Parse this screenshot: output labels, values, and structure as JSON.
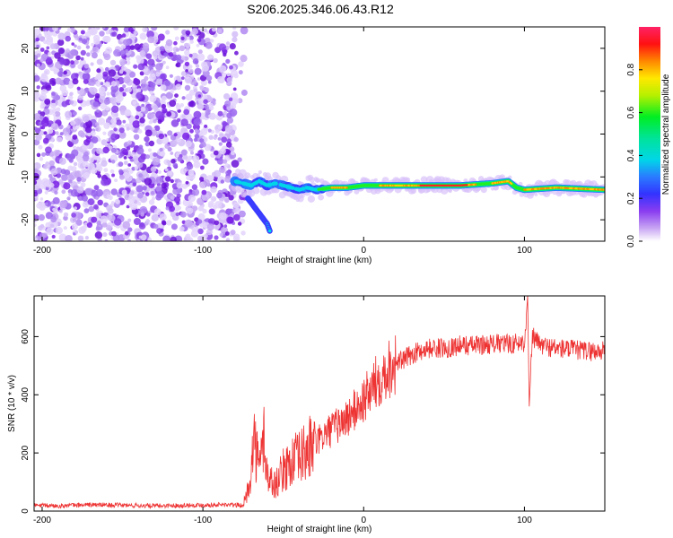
{
  "title": "S206.2025.346.06.43.R12",
  "chart_data": [
    {
      "type": "heatmap",
      "title": "S206.2025.346.06.43.R12",
      "xlabel": "Height of straight line (km)",
      "ylabel": "Frequency (Hz)",
      "xlim": [
        -205,
        150
      ],
      "ylim": [
        -25,
        25
      ],
      "xticks": [
        -200,
        -100,
        0,
        100
      ],
      "yticks": [
        -20,
        -10,
        0,
        10,
        20
      ],
      "noise_region_x": [
        -205,
        -80
      ],
      "signal_track": {
        "x": [
          -80,
          -75,
          -70,
          -65,
          -60,
          -55,
          -50,
          -45,
          -40,
          -35,
          -30,
          -20,
          -10,
          0,
          20,
          40,
          60,
          80,
          90,
          95,
          100,
          120,
          150
        ],
        "y": [
          -11,
          -11.5,
          -12,
          -11,
          -12,
          -11.5,
          -12,
          -12.5,
          -13,
          -12.5,
          -13,
          -12.5,
          -12.5,
          -12,
          -12,
          -12,
          -12,
          -11.5,
          -11,
          -12.5,
          -13,
          -12.5,
          -13
        ]
      },
      "branch_track": {
        "x": [
          -72,
          -68,
          -64,
          -60,
          -58
        ],
        "y": [
          -15,
          -17,
          -19,
          -21,
          -23
        ]
      },
      "colorbar": {
        "label": "Normalized spectral amplitude",
        "ticks": [
          "0.0",
          "0.2",
          "0.4",
          "0.6",
          "0.8"
        ],
        "range": [
          0,
          1
        ]
      }
    },
    {
      "type": "line",
      "xlabel": "Height of straight line (km)",
      "ylabel": "SNR (10 * v/v)",
      "xlim": [
        -205,
        150
      ],
      "ylim": [
        0,
        740
      ],
      "xticks": [
        -200,
        -100,
        0,
        100
      ],
      "yticks": [
        0,
        200,
        400,
        600
      ],
      "series": [
        {
          "name": "SNR",
          "color": "#ee3333",
          "x": [
            -205,
            -190,
            -170,
            -150,
            -130,
            -110,
            -90,
            -75,
            -72,
            -70,
            -68,
            -65,
            -62,
            -60,
            -55,
            -50,
            -45,
            -40,
            -35,
            -30,
            -25,
            -20,
            -15,
            -10,
            -5,
            0,
            5,
            10,
            15,
            20,
            25,
            30,
            40,
            50,
            60,
            70,
            80,
            90,
            100,
            102,
            103,
            105,
            110,
            120,
            130,
            140,
            150
          ],
          "y": [
            20,
            18,
            22,
            20,
            18,
            20,
            22,
            20,
            70,
            150,
            250,
            140,
            260,
            120,
            90,
            140,
            170,
            180,
            210,
            230,
            260,
            280,
            300,
            320,
            350,
            380,
            420,
            460,
            490,
            510,
            520,
            540,
            560,
            560,
            570,
            570,
            575,
            575,
            580,
            740,
            360,
            600,
            570,
            560,
            555,
            550,
            550
          ]
        }
      ]
    }
  ]
}
